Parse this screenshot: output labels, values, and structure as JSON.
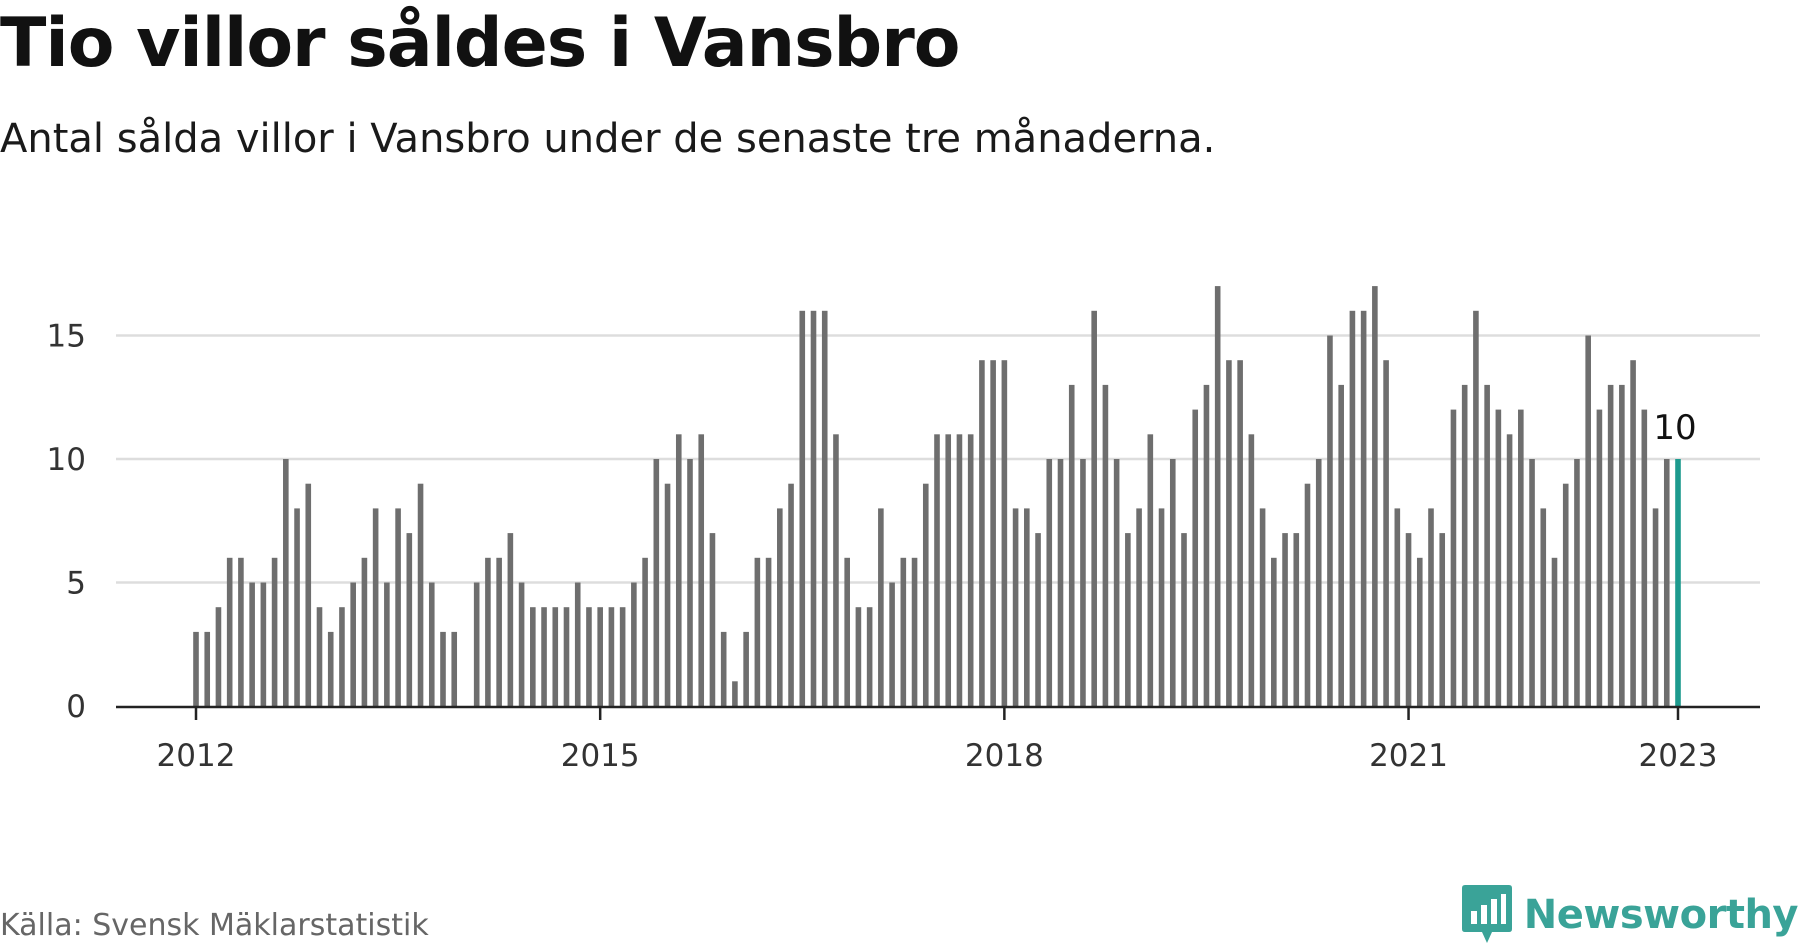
{
  "header": {
    "title": "Tio villor såldes i Vansbro",
    "subtitle": "Antal sålda villor i Vansbro under de senaste tre månaderna."
  },
  "footer": {
    "source": "Källa: Svensk Mäklarstatistik",
    "brand": "Newsworthy"
  },
  "colors": {
    "bar": "#6e6e6e",
    "highlight": "#1d9a8e",
    "grid": "#dddddd",
    "axis": "#222222",
    "brand": "#3aa398"
  },
  "chart_data": {
    "type": "bar",
    "x_start": "2012-01",
    "x_end": "2023-01",
    "x": [
      "2012-01",
      "2012-02",
      "2012-03",
      "2012-04",
      "2012-05",
      "2012-06",
      "2012-07",
      "2012-08",
      "2012-09",
      "2012-10",
      "2012-11",
      "2012-12",
      "2013-01",
      "2013-02",
      "2013-03",
      "2013-04",
      "2013-05",
      "2013-06",
      "2013-07",
      "2013-08",
      "2013-09",
      "2013-10",
      "2013-11",
      "2013-12",
      "2014-01",
      "2014-02",
      "2014-03",
      "2014-04",
      "2014-05",
      "2014-06",
      "2014-07",
      "2014-08",
      "2014-09",
      "2014-10",
      "2014-11",
      "2014-12",
      "2015-01",
      "2015-02",
      "2015-03",
      "2015-04",
      "2015-05",
      "2015-06",
      "2015-07",
      "2015-08",
      "2015-09",
      "2015-10",
      "2015-11",
      "2015-12",
      "2016-01",
      "2016-02",
      "2016-03",
      "2016-04",
      "2016-05",
      "2016-06",
      "2016-07",
      "2016-08",
      "2016-09",
      "2016-10",
      "2016-11",
      "2016-12",
      "2017-01",
      "2017-02",
      "2017-03",
      "2017-04",
      "2017-05",
      "2017-06",
      "2017-07",
      "2017-08",
      "2017-09",
      "2017-10",
      "2017-11",
      "2017-12",
      "2018-01",
      "2018-02",
      "2018-03",
      "2018-04",
      "2018-05",
      "2018-06",
      "2018-07",
      "2018-08",
      "2018-09",
      "2018-10",
      "2018-11",
      "2018-12",
      "2019-01",
      "2019-02",
      "2019-03",
      "2019-04",
      "2019-05",
      "2019-06",
      "2019-07",
      "2019-08",
      "2019-09",
      "2019-10",
      "2019-11",
      "2019-12",
      "2020-01",
      "2020-02",
      "2020-03",
      "2020-04",
      "2020-05",
      "2020-06",
      "2020-07",
      "2020-08",
      "2020-09",
      "2020-10",
      "2020-11",
      "2020-12",
      "2021-01",
      "2021-02",
      "2021-03",
      "2021-04",
      "2021-05",
      "2021-06",
      "2021-07",
      "2021-08",
      "2021-09",
      "2021-10",
      "2021-11",
      "2021-12",
      "2022-01",
      "2022-02",
      "2022-03",
      "2022-04",
      "2022-05",
      "2022-06",
      "2022-07",
      "2022-08",
      "2022-09",
      "2022-10",
      "2022-11",
      "2022-12",
      "2023-01"
    ],
    "values": [
      3,
      3,
      4,
      6,
      6,
      5,
      5,
      6,
      10,
      8,
      9,
      4,
      3,
      4,
      5,
      6,
      8,
      5,
      8,
      7,
      9,
      5,
      3,
      3,
      null,
      5,
      6,
      6,
      7,
      5,
      4,
      4,
      4,
      4,
      5,
      4,
      4,
      4,
      4,
      5,
      6,
      10,
      9,
      11,
      10,
      11,
      7,
      3,
      1,
      3,
      6,
      6,
      8,
      9,
      16,
      16,
      16,
      11,
      6,
      4,
      4,
      8,
      5,
      6,
      6,
      9,
      11,
      11,
      11,
      11,
      14,
      14,
      14,
      8,
      8,
      7,
      10,
      10,
      13,
      10,
      16,
      13,
      10,
      7,
      8,
      11,
      8,
      10,
      7,
      12,
      13,
      17,
      14,
      14,
      11,
      8,
      6,
      7,
      7,
      9,
      10,
      15,
      13,
      16,
      16,
      17,
      14,
      8,
      7,
      6,
      8,
      7,
      12,
      13,
      16,
      13,
      12,
      11,
      12,
      10,
      8,
      6,
      9,
      10,
      15,
      12,
      13,
      13,
      14,
      12,
      8,
      10,
      10
    ],
    "highlight_index": 132,
    "highlight_label": "10",
    "y_ticks": [
      0,
      5,
      10,
      15
    ],
    "ylim": [
      0,
      17
    ],
    "x_ticks": [
      {
        "date": "2012-01",
        "label": "2012"
      },
      {
        "date": "2015-01",
        "label": "2015"
      },
      {
        "date": "2018-01",
        "label": "2018"
      },
      {
        "date": "2021-01",
        "label": "2021"
      },
      {
        "date": "2023-01",
        "label": "2023"
      }
    ],
    "grid": true
  }
}
